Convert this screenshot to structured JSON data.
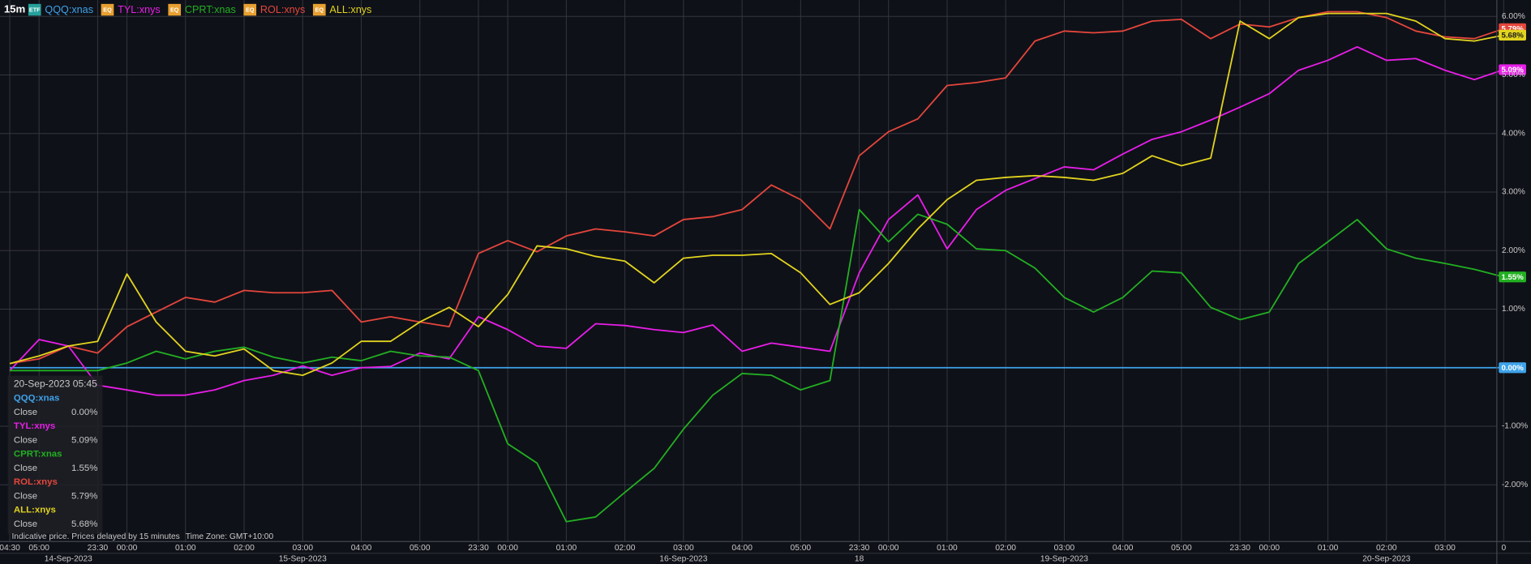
{
  "chart_data": {
    "type": "line",
    "interval": "15m",
    "categories": [
      "04:30",
      "05:00",
      null,
      "23:30",
      "00:00",
      null,
      "01:00",
      null,
      "02:00",
      null,
      "03:00",
      null,
      "04:00",
      null,
      "05:00",
      null,
      "23:30",
      "00:00",
      null,
      "01:00",
      null,
      "02:00",
      null,
      "03:00",
      null,
      "04:00",
      null,
      "05:00",
      null,
      "23:30",
      "00:00",
      null,
      "01:00",
      null,
      "02:00",
      null,
      "03:00",
      null,
      "04:00",
      null,
      "05:00",
      null,
      "23:30",
      "00:00",
      null,
      "01:00",
      null,
      "02:00",
      null,
      "03:00",
      null,
      "0"
    ],
    "dates": [
      null,
      null,
      "14-Sep-2023",
      null,
      null,
      null,
      null,
      null,
      null,
      null,
      "15-Sep-2023",
      null,
      null,
      null,
      null,
      null,
      null,
      null,
      null,
      null,
      null,
      null,
      null,
      "16-Sep-2023",
      null,
      null,
      null,
      null,
      null,
      "18",
      null,
      null,
      null,
      null,
      null,
      null,
      "19-Sep-2023",
      null,
      null,
      null,
      null,
      null,
      null,
      null,
      null,
      null,
      null,
      "20-Sep-2023",
      null,
      null,
      null,
      null
    ],
    "series": [
      {
        "name": "QQQ:xnas",
        "badge": "ETF",
        "color": "#3ea3ea",
        "last_label": "0.00%",
        "values": [
          0,
          0,
          0,
          0,
          0,
          0,
          0,
          0,
          0,
          0,
          0,
          0,
          0,
          0,
          0,
          0,
          0,
          0,
          0,
          0,
          0,
          0,
          0,
          0,
          0,
          0,
          0,
          0,
          0,
          0,
          0,
          0,
          0,
          0,
          0,
          0,
          0,
          0,
          0,
          0,
          0,
          0,
          0,
          0,
          0,
          0,
          0,
          0,
          0,
          0,
          0,
          0
        ]
      },
      {
        "name": "TYL:xnys",
        "badge": "EQ",
        "color": "#e81ee8",
        "last_label": "5.09%",
        "values": [
          -0.05,
          0.48,
          0.37,
          -0.3,
          -0.38,
          -0.47,
          -0.47,
          -0.38,
          -0.22,
          -0.13,
          0.03,
          -0.13,
          0,
          0.02,
          0.25,
          0.15,
          0.87,
          0.65,
          0.37,
          0.33,
          0.75,
          0.72,
          0.65,
          0.6,
          0.73,
          0.28,
          0.42,
          0.35,
          0.28,
          1.62,
          2.53,
          2.95,
          2.03,
          2.7,
          3.03,
          3.23,
          3.43,
          3.38,
          3.65,
          3.9,
          4.03,
          4.23,
          4.45,
          4.68,
          5.08,
          5.25,
          5.48,
          5.25,
          5.28,
          5.08,
          4.92,
          5.09
        ]
      },
      {
        "name": "CPRT:xnas",
        "badge": "EQ",
        "color": "#22b022",
        "last_label": "1.55%",
        "values": [
          -0.05,
          -0.05,
          -0.05,
          -0.05,
          0.08,
          0.28,
          0.15,
          0.28,
          0.35,
          0.18,
          0.08,
          0.18,
          0.12,
          0.28,
          0.2,
          0.18,
          -0.05,
          -1.3,
          -1.63,
          -2.63,
          -2.55,
          -2.13,
          -1.72,
          -1.05,
          -0.47,
          -0.1,
          -0.13,
          -0.38,
          -0.22,
          2.7,
          2.15,
          2.62,
          2.45,
          2.03,
          2.0,
          1.7,
          1.2,
          0.95,
          1.2,
          1.65,
          1.62,
          1.03,
          0.82,
          0.95,
          1.78,
          2.15,
          2.53,
          2.03,
          1.87,
          1.78,
          1.68,
          1.55
        ]
      },
      {
        "name": "ROL:xnys",
        "badge": "EQ",
        "color": "#e5463c",
        "last_label": "5.79%",
        "values": [
          0.07,
          0.15,
          0.37,
          0.25,
          0.7,
          0.95,
          1.2,
          1.12,
          1.32,
          1.28,
          1.28,
          1.32,
          0.78,
          0.87,
          0.78,
          0.7,
          1.95,
          2.17,
          1.98,
          2.25,
          2.37,
          2.32,
          2.25,
          2.53,
          2.58,
          2.7,
          3.12,
          2.87,
          2.37,
          3.62,
          4.03,
          4.25,
          4.82,
          4.87,
          4.95,
          5.58,
          5.75,
          5.72,
          5.75,
          5.92,
          5.95,
          5.62,
          5.87,
          5.82,
          5.98,
          6.08,
          6.08,
          5.98,
          5.75,
          5.65,
          5.62,
          5.79
        ]
      },
      {
        "name": "ALL:xnys",
        "badge": "EQ",
        "color": "#e2d41e",
        "last_label": "5.68%",
        "values": [
          0.07,
          0.2,
          0.37,
          0.45,
          1.6,
          0.78,
          0.28,
          0.2,
          0.32,
          -0.05,
          -0.13,
          0.08,
          0.45,
          0.45,
          0.78,
          1.03,
          0.7,
          1.25,
          2.08,
          2.03,
          1.9,
          1.82,
          1.45,
          1.87,
          1.92,
          1.92,
          1.95,
          1.62,
          1.08,
          1.28,
          1.78,
          2.37,
          2.87,
          3.2,
          3.25,
          3.28,
          3.25,
          3.2,
          3.32,
          3.62,
          3.45,
          3.58,
          5.92,
          5.62,
          5.98,
          6.05,
          6.05,
          6.05,
          5.92,
          5.62,
          5.58,
          5.68
        ]
      }
    ],
    "ylim": [
      -2.97,
      6.28
    ],
    "yticks": [
      {
        "value": 6,
        "label": "6.00%"
      },
      {
        "value": 5,
        "label": "5.00%"
      },
      {
        "value": 4,
        "label": "4.00%"
      },
      {
        "value": 3,
        "label": "3.00%"
      },
      {
        "value": 2,
        "label": "2.00%"
      },
      {
        "value": 1,
        "label": "1.00%"
      },
      {
        "value": -1,
        "label": "-1.00%"
      },
      {
        "value": -2,
        "label": "-2.00%"
      }
    ],
    "grid": true,
    "tooltip": {
      "time": "20-Sep-2023 05:45",
      "field": "Close"
    },
    "footer": {
      "note": "Indicative price. Prices delayed by 15 minutes",
      "timezone": "Time Zone: GMT+10:00"
    }
  }
}
